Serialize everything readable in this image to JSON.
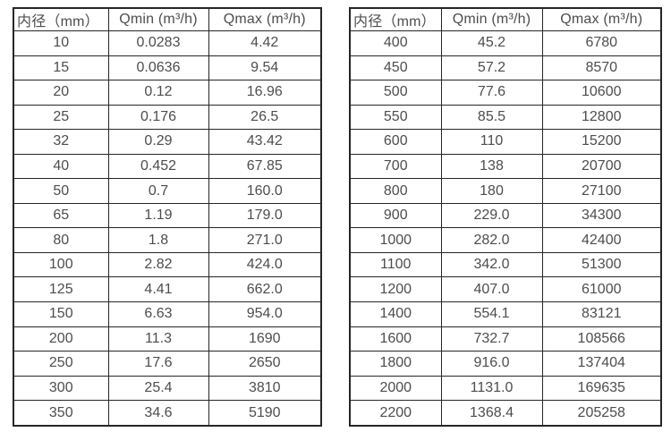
{
  "page": {
    "background_color": "#ffffff",
    "border_color": "#262626",
    "text_color": "#4d4d4d"
  },
  "tables": [
    {
      "name": "flow-spec-table-small-diameters",
      "headers": [
        "内径（mm）",
        "Qmin (m³/h)",
        "Qmax (m³/h)"
      ],
      "rows": [
        [
          "10",
          "0.0283",
          "4.42"
        ],
        [
          "15",
          "0.0636",
          "9.54"
        ],
        [
          "20",
          "0.12",
          "16.96"
        ],
        [
          "25",
          "0.176",
          "26.5"
        ],
        [
          "32",
          "0.29",
          "43.42"
        ],
        [
          "40",
          "0.452",
          "67.85"
        ],
        [
          "50",
          "0.7",
          "160.0"
        ],
        [
          "65",
          "1.19",
          "179.0"
        ],
        [
          "80",
          "1.8",
          "271.0"
        ],
        [
          "100",
          "2.82",
          "424.0"
        ],
        [
          "125",
          "4.41",
          "662.0"
        ],
        [
          "150",
          "6.63",
          "954.0"
        ],
        [
          "200",
          "11.3",
          "1690"
        ],
        [
          "250",
          "17.6",
          "2650"
        ],
        [
          "300",
          "25.4",
          "3810"
        ],
        [
          "350",
          "34.6",
          "5190"
        ]
      ]
    },
    {
      "name": "flow-spec-table-large-diameters",
      "headers": [
        "内径（mm）",
        "Qmin (m³/h)",
        "Qmax (m³/h)"
      ],
      "rows": [
        [
          "400",
          "45.2",
          "6780"
        ],
        [
          "450",
          "57.2",
          "8570"
        ],
        [
          "500",
          "77.6",
          "10600"
        ],
        [
          "550",
          "85.5",
          "12800"
        ],
        [
          "600",
          "110",
          "15200"
        ],
        [
          "700",
          "138",
          "20700"
        ],
        [
          "800",
          "180",
          "27100"
        ],
        [
          "900",
          "229.0",
          "34300"
        ],
        [
          "1000",
          "282.0",
          "42400"
        ],
        [
          "1100",
          "342.0",
          "51300"
        ],
        [
          "1200",
          "407.0",
          "61000"
        ],
        [
          "1400",
          "554.1",
          "83121"
        ],
        [
          "1600",
          "732.7",
          "108566"
        ],
        [
          "1800",
          "916.0",
          "137404"
        ],
        [
          "2000",
          "1131.0",
          "169635"
        ],
        [
          "2200",
          "1368.4",
          "205258"
        ]
      ]
    }
  ]
}
